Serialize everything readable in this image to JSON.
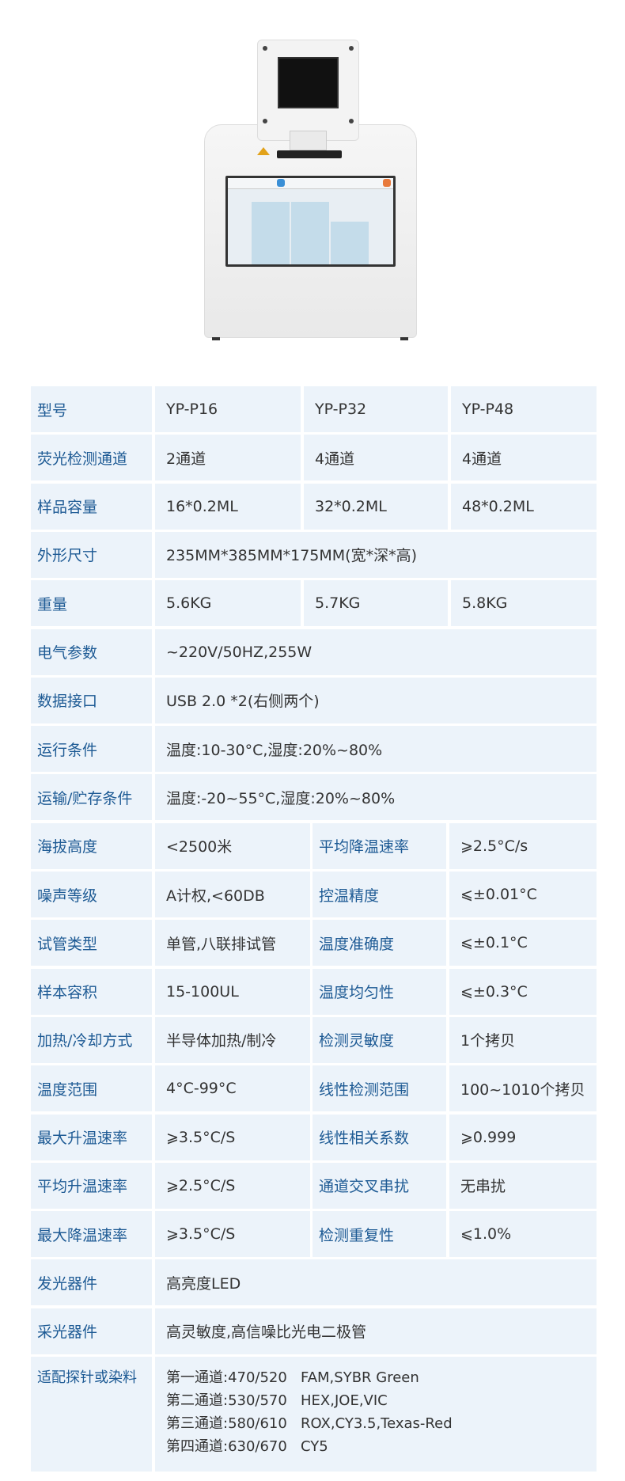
{
  "colors": {
    "cell_bg": "#ecf3fa",
    "label": "#1d5a94",
    "text": "#333333"
  },
  "spec_rows": [
    {
      "type": "models",
      "label": "型号",
      "values": [
        "YP-P16",
        "YP-P32",
        "YP-P48"
      ]
    },
    {
      "type": "models",
      "label": "荧光检测通道",
      "values": [
        "2通道",
        "4通道",
        "4通道"
      ]
    },
    {
      "type": "models",
      "label": "样品容量",
      "values": [
        "16*0.2ML",
        "32*0.2ML",
        "48*0.2ML"
      ]
    },
    {
      "type": "span",
      "label": "外形尺寸",
      "value": "235MM*385MM*175MM(宽*深*高)"
    },
    {
      "type": "models",
      "label": "重量",
      "values": [
        "5.6KG",
        "5.7KG",
        "5.8KG"
      ]
    },
    {
      "type": "span",
      "label": "电气参数",
      "value": "~220V/50HZ,255W"
    },
    {
      "type": "span",
      "label": "数据接口",
      "value": "USB 2.0 *2(右侧两个)"
    },
    {
      "type": "span",
      "label": "运行条件",
      "value": "温度:10-30°C,湿度:20%~80%"
    },
    {
      "type": "span",
      "label": "运输/贮存条件",
      "value": "温度:-20~55°C,湿度:20%~80%"
    },
    {
      "type": "pair",
      "label": "海拔高度",
      "value": "<2500米",
      "label2": "平均降温速率",
      "value2": "⩾2.5°C/s"
    },
    {
      "type": "pair",
      "label": "噪声等级",
      "value": "A计权,<60DB",
      "label2": "控温精度",
      "value2": "⩽±0.01°C"
    },
    {
      "type": "pair",
      "label": "试管类型",
      "value": "单管,八联排试管",
      "label2": "温度准确度",
      "value2": "⩽±0.1°C"
    },
    {
      "type": "pair",
      "label": "样本容积",
      "value": "15-100UL",
      "label2": "温度均匀性",
      "value2": "⩽±0.3°C"
    },
    {
      "type": "pair",
      "label": "加热/冷却方式",
      "value": "半导体加热/制冷",
      "label2": "检测灵敏度",
      "value2": "1个拷贝"
    },
    {
      "type": "pair",
      "label": "温度范围",
      "value": "4°C-99°C",
      "label2": "线性检测范围",
      "value2": "100~1010个拷贝"
    },
    {
      "type": "pair",
      "label": "最大升温速率",
      "value": "⩾3.5°C/S",
      "label2": "线性相关系数",
      "value2": "⩾0.999"
    },
    {
      "type": "pair",
      "label": "平均升温速率",
      "value": "⩾2.5°C/S",
      "label2": "通道交叉串扰",
      "value2": "无串扰"
    },
    {
      "type": "pair",
      "label": "最大降温速率",
      "value": "⩾3.5°C/S",
      "label2": "检测重复性",
      "value2": "⩽1.0%"
    },
    {
      "type": "span",
      "label": "发光器件",
      "value": "高亮度LED"
    },
    {
      "type": "span",
      "label": "采光器件",
      "value": "高灵敏度,高信噪比光电二极管"
    }
  ],
  "probes": {
    "label": "适配探针或染料",
    "lines": [
      "第一通道:470/520   FAM,SYBR Green",
      "第二通道:530/570   HEX,JOE,VIC",
      "第三通道:580/610   ROX,CY3.5,Texas-Red",
      "第四通道:630/670   CY5"
    ]
  }
}
